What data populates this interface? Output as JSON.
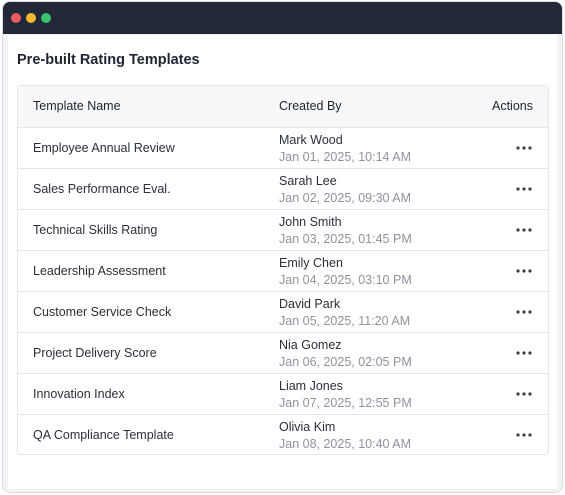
{
  "page_title": "Pre-built Rating Templates",
  "columns": {
    "name": "Template Name",
    "created_by": "Created By",
    "actions": "Actions"
  },
  "rows": [
    {
      "name": "Employee Annual Review",
      "user": "Mark Wood",
      "date": "Jan 01, 2025, 10:14 AM"
    },
    {
      "name": "Sales Performance Eval.",
      "user": "Sarah Lee",
      "date": "Jan 02, 2025, 09:30 AM"
    },
    {
      "name": "Technical Skills Rating",
      "user": "John Smith",
      "date": "Jan 03, 2025, 01:45 PM"
    },
    {
      "name": "Leadership Assessment",
      "user": "Emily Chen",
      "date": "Jan 04, 2025, 03:10 PM"
    },
    {
      "name": "Customer Service Check",
      "user": "David Park",
      "date": "Jan 05, 2025, 11:20 AM"
    },
    {
      "name": "Project Delivery Score",
      "user": "Nia Gomez",
      "date": "Jan 06, 2025, 02:05 PM"
    },
    {
      "name": "Innovation Index",
      "user": "Liam Jones",
      "date": "Jan 07, 2025, 12:55 PM"
    },
    {
      "name": "QA Compliance Template",
      "user": "Olivia Kim",
      "date": "Jan 08, 2025, 10:40 AM"
    }
  ],
  "row_action_icon": "more-horizontal-icon",
  "colors": {
    "titlebar": "#232838",
    "close": "#ee5a62",
    "minimize": "#f3b930",
    "maximize": "#3cc56d",
    "header_bg": "#f5f7f9",
    "muted_text": "#8d939d"
  }
}
